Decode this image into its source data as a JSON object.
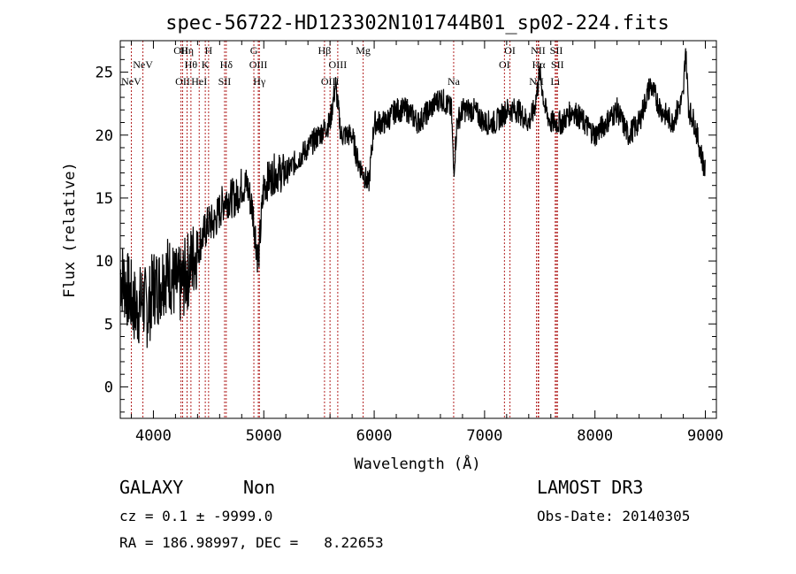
{
  "chart_data": {
    "type": "line",
    "title": "spec-56722-HD123302N101744B01_sp02-224.fits",
    "xlabel": "Wavelength (Å)",
    "ylabel": "Flux (relative)",
    "xlim": [
      3700,
      9100
    ],
    "ylim": [
      -2.5,
      27.5
    ],
    "x_ticks": [
      4000,
      5000,
      6000,
      7000,
      8000,
      9000
    ],
    "y_ticks": [
      0,
      5,
      10,
      15,
      20,
      25
    ],
    "grid": false,
    "series": [
      {
        "x": [
          3700,
          3750,
          3800,
          3850,
          3900,
          3950,
          4000,
          4050,
          4100,
          4150,
          4200,
          4250,
          4300,
          4350,
          4400,
          4450,
          4500,
          4550,
          4600,
          4650,
          4700,
          4750,
          4800,
          4850,
          4900,
          4950,
          5000,
          5100,
          5200,
          5300,
          5400,
          5500,
          5600,
          5650,
          5700,
          5800,
          5850,
          5900,
          5950,
          6000,
          6100,
          6200,
          6300,
          6400,
          6500,
          6600,
          6700,
          6720,
          6750,
          6800,
          6900,
          7000,
          7100,
          7200,
          7300,
          7400,
          7450,
          7500,
          7550,
          7600,
          7700,
          7800,
          7900,
          8000,
          8100,
          8200,
          8300,
          8400,
          8500,
          8600,
          8700,
          8800,
          8820,
          8850,
          8900,
          8950,
          9000
        ],
        "y": [
          9,
          8,
          7,
          6,
          7,
          6,
          8,
          8,
          9,
          9,
          8,
          8,
          9,
          10,
          11,
          12,
          13,
          13,
          14,
          15,
          15,
          15,
          16,
          16,
          14,
          10,
          16,
          17,
          17,
          18,
          19,
          20,
          21,
          24,
          20,
          20,
          18,
          17,
          16,
          21,
          21,
          22,
          22,
          21,
          22,
          23,
          22,
          17,
          21,
          22,
          22,
          21,
          21,
          22,
          22,
          21,
          22,
          25,
          22,
          21,
          21,
          22,
          21,
          20,
          21,
          22,
          20,
          21,
          24,
          22,
          21,
          23,
          27,
          22,
          21,
          19,
          17
        ]
      }
    ],
    "lines": [
      {
        "label": "NeV",
        "x": 3800,
        "row": 2
      },
      {
        "label": "NeV",
        "x": 3905,
        "row": 1
      },
      {
        "label": "OII",
        "x": 4250,
        "row": 0
      },
      {
        "label": "OII",
        "x": 4265,
        "row": 2
      },
      {
        "label": "Hη",
        "x": 4305,
        "row": 0
      },
      {
        "label": "Hθ",
        "x": 4340,
        "row": 1
      },
      {
        "label": "HeI",
        "x": 4415,
        "row": 2
      },
      {
        "label": "H",
        "x": 4500,
        "row": 0
      },
      {
        "label": "K",
        "x": 4470,
        "row": 1
      },
      {
        "label": "Hδ",
        "x": 4660,
        "row": 1
      },
      {
        "label": "SII",
        "x": 4645,
        "row": 2
      },
      {
        "label": "G",
        "x": 4910,
        "row": 0
      },
      {
        "label": "OIII",
        "x": 4950,
        "row": 1
      },
      {
        "label": "Hγ",
        "x": 4960,
        "row": 2
      },
      {
        "label": "Hβ",
        "x": 5550,
        "row": 0
      },
      {
        "label": "OIII",
        "x": 5600,
        "row": 2
      },
      {
        "label": "OIII",
        "x": 5670,
        "row": 1
      },
      {
        "label": "Mg",
        "x": 5900,
        "row": 0
      },
      {
        "label": "Na",
        "x": 6720,
        "row": 2
      },
      {
        "label": "OI",
        "x": 7230,
        "row": 0
      },
      {
        "label": "OI",
        "x": 7180,
        "row": 1
      },
      {
        "label": "NII",
        "x": 7485,
        "row": 0
      },
      {
        "label": "Hα",
        "x": 7490,
        "row": 1
      },
      {
        "label": "NII",
        "x": 7470,
        "row": 2
      },
      {
        "label": "SII",
        "x": 7650,
        "row": 0
      },
      {
        "label": "SII",
        "x": 7660,
        "row": 1
      },
      {
        "label": "Li",
        "x": 7640,
        "row": 2
      }
    ]
  },
  "footer": {
    "class_label": "GALAXY",
    "subclass_label": "Non",
    "survey_label": "LAMOST DR3",
    "cz_text": "cz = 0.1 ± -9999.0",
    "obs_date_text": "Obs-Date: 20140305",
    "radec_text": "RA = 186.98997, DEC =   8.22653"
  }
}
